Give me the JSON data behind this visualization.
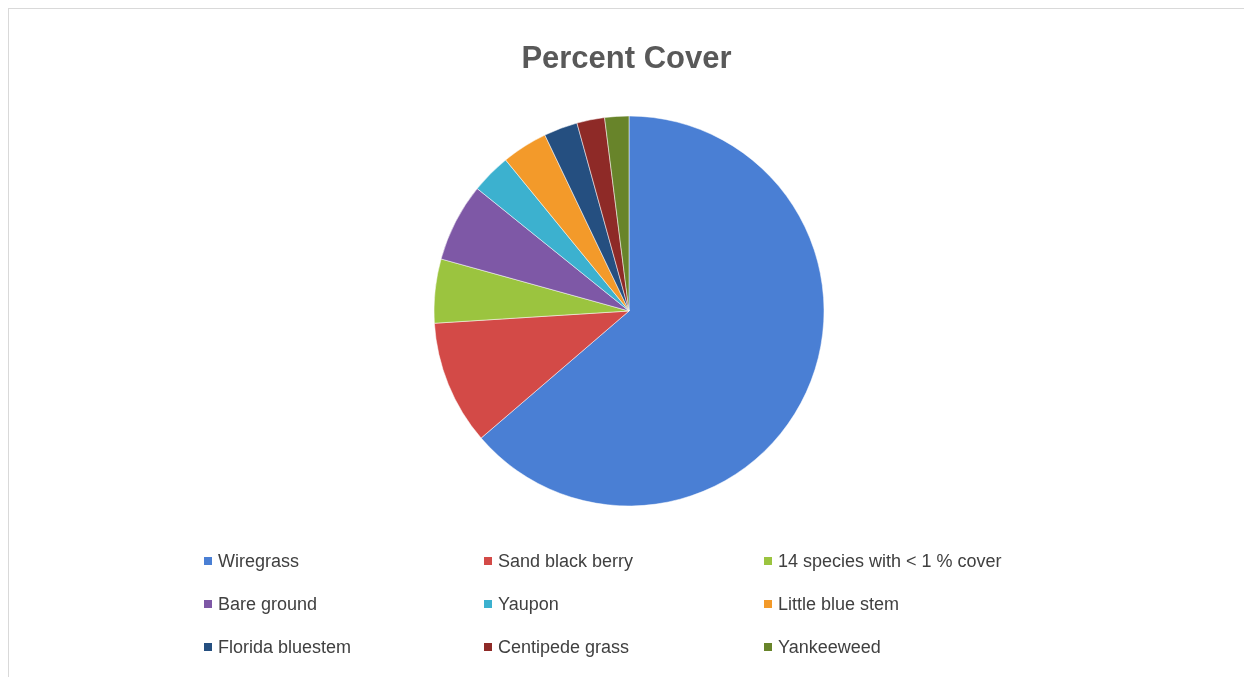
{
  "chart_data": {
    "type": "pie",
    "title": "Percent Cover",
    "categories": [
      "Wiregrass",
      "Sand black berry",
      "14 species with < 1 % cover",
      "Bare ground",
      "Yaupon",
      "Little blue stem",
      "Florida bluestem",
      "Centipede grass",
      "Yankeeweed"
    ],
    "values": [
      63.7,
      10.3,
      5.3,
      6.5,
      3.3,
      3.8,
      2.8,
      2.3,
      2.0
    ],
    "colors": [
      "#4a7fd4",
      "#d34a47",
      "#9bc43f",
      "#7e58a6",
      "#3cb1cf",
      "#f39a2a",
      "#254f80",
      "#8e2a27",
      "#68842a"
    ],
    "legend": "bottom"
  }
}
